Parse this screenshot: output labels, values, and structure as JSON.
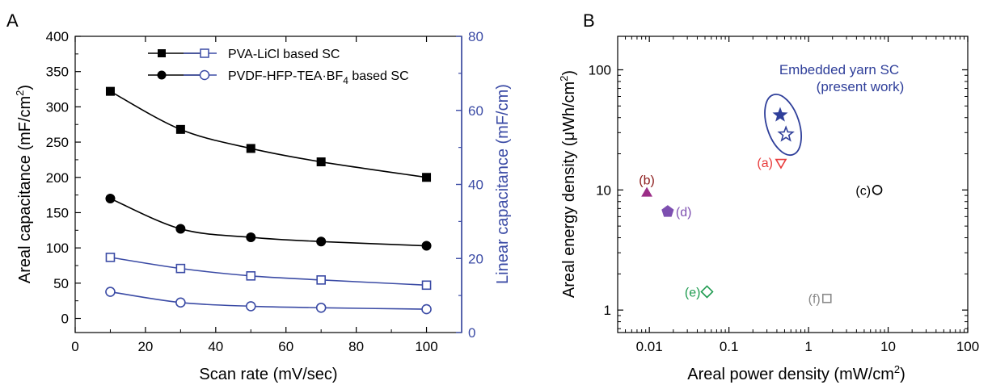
{
  "panels": {
    "a": {
      "label": "A"
    },
    "b": {
      "label": "B"
    }
  },
  "colors": {
    "black": "#000000",
    "blue": "#3b4ba5",
    "navy": "#2f3f9a",
    "red": "#e83b3b",
    "maroon": "#8b1a1a",
    "magenta": "#9b2d87",
    "purple": "#7d4fb0",
    "green": "#1c9a4e",
    "gray": "#8a8a8a"
  },
  "chart_data": [
    {
      "type": "line",
      "panel": "A",
      "x": [
        10,
        30,
        50,
        70,
        100
      ],
      "xlabel": "Scan rate (mV/sec)",
      "ylabel_left_main": "Areal capacitance (mF/cm",
      "ylabel_left_sup": "2",
      "ylabel_left_end": ")",
      "ylabel_right": "Linear capacitance (mF/cm)",
      "xlim": [
        0,
        110
      ],
      "ylim_left": [
        -20,
        400
      ],
      "ylim_right": [
        0,
        80
      ],
      "xticks": [
        0,
        20,
        40,
        60,
        80,
        100
      ],
      "yticks_left": [
        0,
        50,
        100,
        150,
        200,
        250,
        300,
        350,
        400
      ],
      "yticks_right": [
        0,
        20,
        40,
        60,
        80
      ],
      "legend": {
        "placement": "top-center",
        "entries": [
          {
            "text_main": "PVA-LiCl based SC",
            "text_sub": "",
            "text_end": ""
          },
          {
            "text_main": "PVDF-HFP-TEA·BF",
            "text_sub": "4",
            "text_end": " based SC"
          }
        ]
      },
      "series": [
        {
          "axis": "left",
          "color": "black",
          "marker": "square-filled",
          "values": [
            322,
            268,
            241,
            222,
            200
          ]
        },
        {
          "axis": "left",
          "color": "black",
          "marker": "circle-filled",
          "values": [
            170,
            127,
            115,
            109,
            103
          ]
        },
        {
          "axis": "right",
          "color": "blue",
          "marker": "square-open",
          "values": [
            20.3,
            17.3,
            15.3,
            14.2,
            12.8
          ]
        },
        {
          "axis": "right",
          "color": "blue",
          "marker": "circle-open",
          "values": [
            11.0,
            8.1,
            7.1,
            6.7,
            6.3
          ]
        }
      ]
    },
    {
      "type": "scatter",
      "panel": "B",
      "xscale": "log",
      "yscale": "log",
      "xlabel_main": "Areal power density (mW/cm",
      "xlabel_sup": "2",
      "xlabel_end": ")",
      "ylabel_main": "Areal energy density (μWh/cm",
      "ylabel_sup": "2",
      "ylabel_end": ")",
      "xlim": [
        0.004,
        100
      ],
      "ylim": [
        0.65,
        190
      ],
      "xticks": [
        0.01,
        0.1,
        1,
        10,
        100
      ],
      "xtick_labels": [
        "0.01",
        "0.1",
        "1",
        "10",
        "100"
      ],
      "yticks": [
        1,
        10,
        100
      ],
      "ytick_labels": [
        "1",
        "10",
        "100"
      ],
      "points": [
        {
          "label": "",
          "x": 0.44,
          "y": 42,
          "color": "navy",
          "marker": "star-filled"
        },
        {
          "label": "",
          "x": 0.52,
          "y": 29,
          "color": "navy",
          "marker": "star-open"
        },
        {
          "label": "(a)",
          "x": 0.45,
          "y": 17,
          "color": "red",
          "marker": "triangle-down-open"
        },
        {
          "label": "(b)",
          "x": 0.0093,
          "y": 9.5,
          "color": "maroon",
          "marker": "triangle-up-filled",
          "marker_color": "magenta"
        },
        {
          "label": "(c)",
          "x": 7.3,
          "y": 10,
          "color": "black",
          "marker": "circle-open"
        },
        {
          "label": "(d)",
          "x": 0.017,
          "y": 6.6,
          "color": "purple",
          "marker": "pentagon-filled"
        },
        {
          "label": "(e)",
          "x": 0.053,
          "y": 1.42,
          "color": "green",
          "marker": "diamond-open"
        },
        {
          "label": "(f)",
          "x": 1.7,
          "y": 1.25,
          "color": "gray",
          "marker": "square-open"
        }
      ],
      "annotation": {
        "line1": "Embedded yarn SC",
        "line2": "(present work)",
        "color": "navy"
      }
    }
  ]
}
